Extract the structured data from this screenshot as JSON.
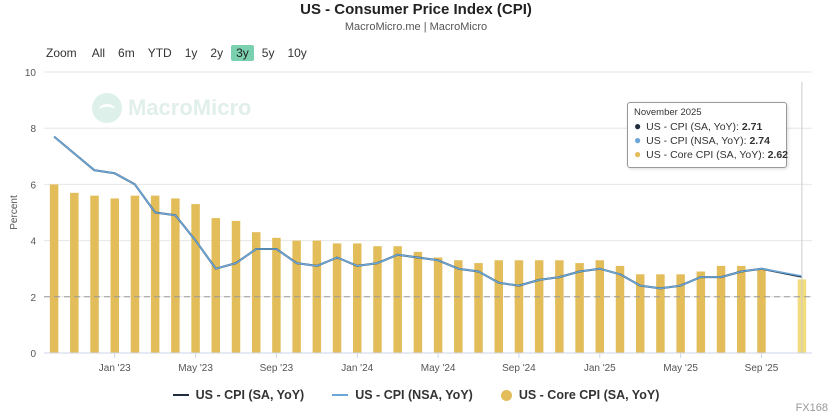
{
  "header": {
    "title": "US - Consumer Price Index (CPI)",
    "subtitle": "MacroMicro.me | MacroMicro"
  },
  "zoom": {
    "label": "Zoom",
    "options": [
      "All",
      "6m",
      "YTD",
      "1y",
      "2y",
      "3y",
      "5y",
      "10y"
    ],
    "active": "3y"
  },
  "watermark": {
    "text": "MacroMicro"
  },
  "corner_mark": {
    "text": "FX168"
  },
  "tooltip": {
    "date": "November 2025",
    "rows": [
      {
        "label": "US - CPI (SA, YoY):",
        "value": "2.71",
        "color": "#1f2d3d"
      },
      {
        "label": "US - CPI (NSA, YoY):",
        "value": "2.74",
        "color": "#6aa7d8"
      },
      {
        "label": "US - Core CPI (SA, YoY):",
        "value": "2.62",
        "color": "#e2bd5a"
      }
    ]
  },
  "colors": {
    "cpi_sa": "#1f2d3d",
    "cpi_nsa": "#6aa7d8",
    "core": "#e2bd5a",
    "core_last": "#f3dc7c",
    "grid": "#e6e6e6",
    "refline": "#999999"
  },
  "chart_data": {
    "type": "bar+line",
    "ylabel": "Percent",
    "ylim": [
      0,
      10
    ],
    "yticks": [
      0,
      2,
      4,
      6,
      8,
      10
    ],
    "reference_line": 2,
    "xtick_labels": [
      {
        "label": "Jan '23",
        "month": "2023-01"
      },
      {
        "label": "May '23",
        "month": "2023-05"
      },
      {
        "label": "Sep '23",
        "month": "2023-09"
      },
      {
        "label": "Jan '24",
        "month": "2024-01"
      },
      {
        "label": "May '24",
        "month": "2024-05"
      },
      {
        "label": "Sep '24",
        "month": "2024-09"
      },
      {
        "label": "Jan '25",
        "month": "2025-01"
      },
      {
        "label": "May '25",
        "month": "2025-05"
      },
      {
        "label": "Sep '25",
        "month": "2025-09"
      }
    ],
    "months": [
      "2022-10",
      "2022-11",
      "2022-12",
      "2023-01",
      "2023-02",
      "2023-03",
      "2023-04",
      "2023-05",
      "2023-06",
      "2023-07",
      "2023-08",
      "2023-09",
      "2023-10",
      "2023-11",
      "2023-12",
      "2024-01",
      "2024-02",
      "2024-03",
      "2024-04",
      "2024-05",
      "2024-06",
      "2024-07",
      "2024-08",
      "2024-09",
      "2024-10",
      "2024-11",
      "2024-12",
      "2025-01",
      "2025-02",
      "2025-03",
      "2025-04",
      "2025-05",
      "2025-06",
      "2025-07",
      "2025-08",
      "2025-09",
      "2025-10",
      "2025-11"
    ],
    "series": [
      {
        "name": "US - CPI (SA, YoY)",
        "kind": "line",
        "values": [
          7.7,
          7.1,
          6.5,
          6.4,
          6.0,
          5.0,
          4.9,
          4.0,
          3.0,
          3.2,
          3.7,
          3.7,
          3.2,
          3.1,
          3.4,
          3.1,
          3.2,
          3.5,
          3.4,
          3.3,
          3.0,
          2.9,
          2.5,
          2.4,
          2.6,
          2.7,
          2.9,
          3.0,
          2.8,
          2.4,
          2.3,
          2.4,
          2.7,
          2.7,
          2.9,
          3.0,
          null,
          2.71
        ]
      },
      {
        "name": "US - CPI (NSA, YoY)",
        "kind": "line",
        "values": [
          7.7,
          7.1,
          6.5,
          6.4,
          6.0,
          5.0,
          4.9,
          4.0,
          3.0,
          3.2,
          3.7,
          3.7,
          3.2,
          3.1,
          3.4,
          3.1,
          3.2,
          3.5,
          3.4,
          3.3,
          3.0,
          2.9,
          2.5,
          2.4,
          2.6,
          2.7,
          2.9,
          3.0,
          2.8,
          2.4,
          2.3,
          2.4,
          2.7,
          2.7,
          2.9,
          3.0,
          null,
          2.74
        ]
      },
      {
        "name": "US - Core CPI (SA, YoY)",
        "kind": "bar",
        "values": [
          6.0,
          5.7,
          5.6,
          5.5,
          5.6,
          5.6,
          5.5,
          5.3,
          4.8,
          4.7,
          4.3,
          4.1,
          4.0,
          4.0,
          3.9,
          3.9,
          3.8,
          3.8,
          3.6,
          3.4,
          3.3,
          3.2,
          3.3,
          3.3,
          3.3,
          3.3,
          3.2,
          3.3,
          3.1,
          2.8,
          2.8,
          2.8,
          2.9,
          3.1,
          3.1,
          3.0,
          null,
          2.62
        ]
      }
    ],
    "legend": [
      {
        "name": "US - CPI (SA, YoY)",
        "marker": "line"
      },
      {
        "name": "US - CPI (NSA, YoY)",
        "marker": "line"
      },
      {
        "name": "US - Core CPI (SA, YoY)",
        "marker": "dot"
      }
    ],
    "legend_position": "bottom-center"
  }
}
